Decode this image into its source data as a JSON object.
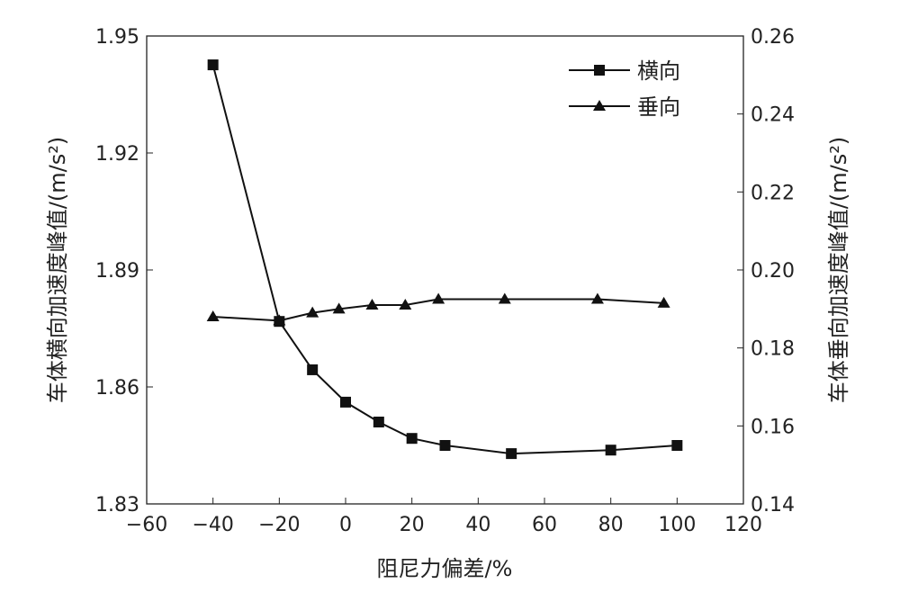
{
  "chart_data": {
    "type": "line",
    "xlabel": "阻尼力偏差/%",
    "ylabel_left": "车体横向加速度峰值/(m/s²)",
    "ylabel_right": "车体垂向加速度峰值/(m/s²)",
    "xlim": [
      -60,
      120
    ],
    "ylim_left": [
      1.83,
      1.95
    ],
    "ylim_right": [
      0.14,
      0.26
    ],
    "xticks": [
      "−60",
      "−40",
      "−20",
      "0",
      "20",
      "40",
      "60",
      "80",
      "100",
      "120"
    ],
    "yticks_left": [
      "1.83",
      "1.86",
      "1.89",
      "1.92",
      "1.95"
    ],
    "yticks_right": [
      "0.14",
      "0.16",
      "0.18",
      "0.20",
      "0.22",
      "0.24",
      "0.26"
    ],
    "legend_position": "top-right",
    "series": [
      {
        "name": "横向",
        "axis": "left",
        "marker": "square",
        "x": [
          -40,
          -20,
          -10,
          0,
          10,
          20,
          30,
          50,
          80,
          100
        ],
        "y": [
          1.9426,
          1.8768,
          1.8644,
          1.8561,
          1.851,
          1.8468,
          1.845,
          1.8429,
          1.8438,
          1.845
        ]
      },
      {
        "name": "垂向",
        "axis": "right",
        "marker": "triangle",
        "x": [
          -40,
          -20,
          -10,
          -2,
          8,
          18,
          28,
          48,
          76,
          96
        ],
        "y": [
          0.188,
          0.187,
          0.189,
          0.19,
          0.191,
          0.191,
          0.1925,
          0.1925,
          0.1925,
          0.1915
        ]
      }
    ]
  }
}
